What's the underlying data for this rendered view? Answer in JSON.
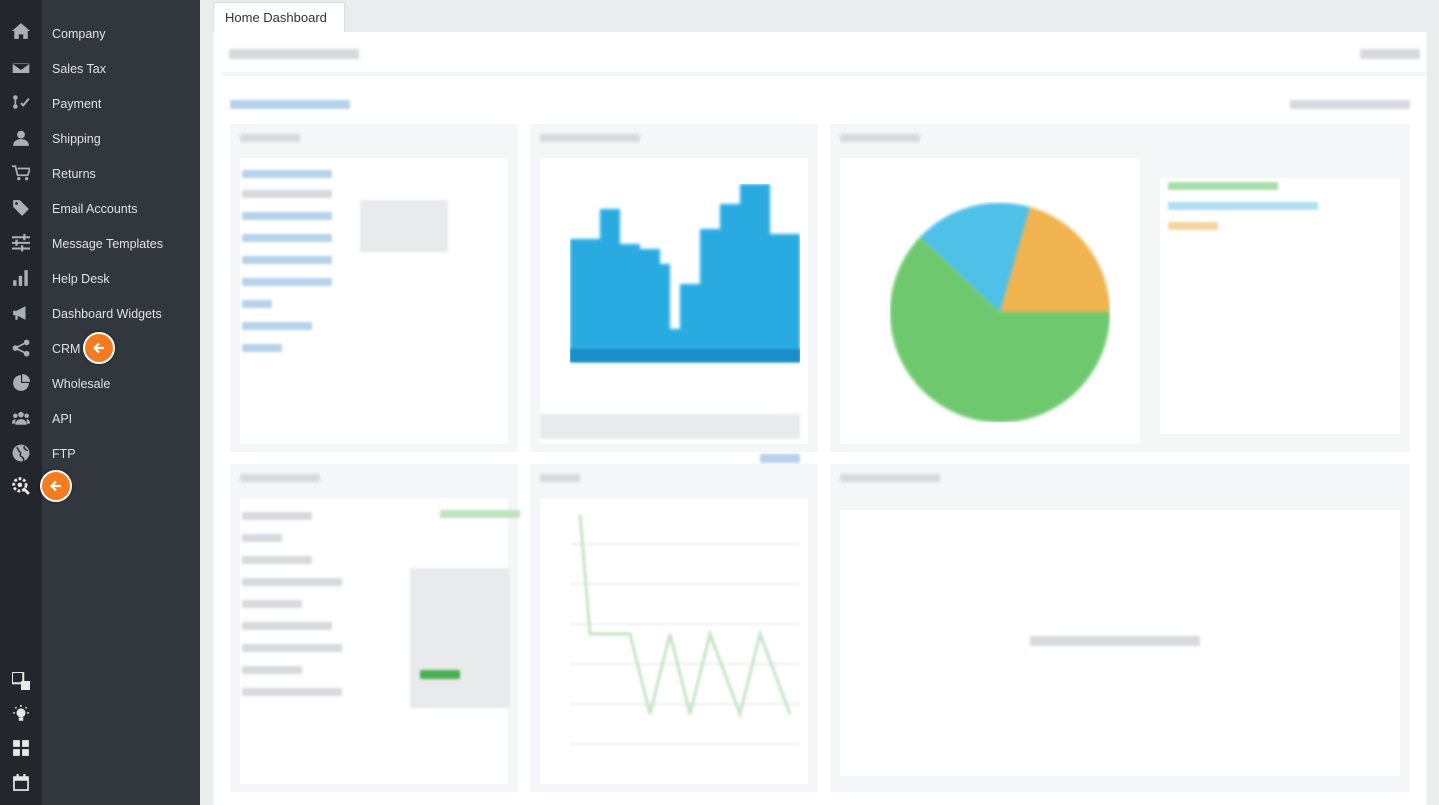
{
  "tab": {
    "label": "Home Dashboard"
  },
  "rail": {
    "icons": [
      "home-icon",
      "envelope-icon",
      "payment-icon",
      "user-icon",
      "cart-icon",
      "tag-icon",
      "sliders-icon",
      "bar-chart-icon",
      "megaphone-icon",
      "share-icon",
      "pie-chart-icon",
      "users-icon",
      "globe-icon",
      "settings-gear-icon",
      "widgets-icon",
      "lightbulb-icon",
      "calculator-icon",
      "calendar-icon"
    ]
  },
  "menu": {
    "items": [
      {
        "label": "Company"
      },
      {
        "label": "Sales Tax"
      },
      {
        "label": "Payment"
      },
      {
        "label": "Shipping"
      },
      {
        "label": "Returns"
      },
      {
        "label": "Email Accounts"
      },
      {
        "label": "Message Templates"
      },
      {
        "label": "Help Desk"
      },
      {
        "label": "Dashboard Widgets"
      },
      {
        "label": "CRM"
      },
      {
        "label": "Wholesale"
      },
      {
        "label": "API"
      },
      {
        "label": "FTP"
      }
    ]
  },
  "colors": {
    "pointer": "#f47b20",
    "bar_blue": "#29abe2",
    "pie_green": "#6ec96e",
    "pie_blue": "#4fc0e8",
    "pie_orange": "#f0b450"
  }
}
